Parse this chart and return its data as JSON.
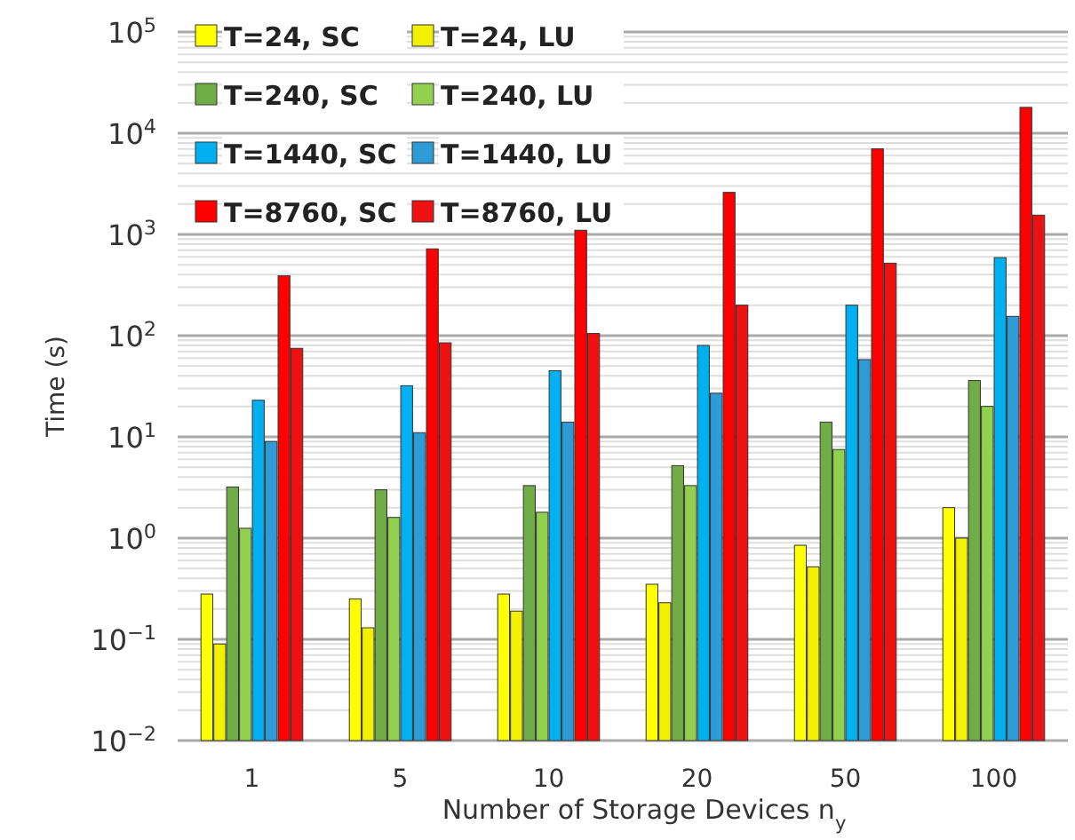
{
  "chart_data": {
    "type": "bar",
    "xlabel": "Number of Storage Devices n$_{y}$",
    "ylabel": "Time (s)",
    "categories": [
      "1",
      "5",
      "10",
      "20",
      "50",
      "100"
    ],
    "series": [
      {
        "name": "T=24, SC",
        "color": "#ffff00",
        "values": [
          0.28,
          0.25,
          0.28,
          0.35,
          0.85,
          2.0
        ]
      },
      {
        "name": "T=24, LU",
        "color": "#f2f200",
        "values": [
          0.09,
          0.13,
          0.19,
          0.23,
          0.52,
          1.0
        ]
      },
      {
        "name": "T=240, SC",
        "color": "#70ad47",
        "values": [
          3.2,
          3.0,
          3.3,
          5.2,
          14,
          36
        ]
      },
      {
        "name": "T=240, LU",
        "color": "#92d050",
        "values": [
          1.25,
          1.6,
          1.8,
          3.3,
          7.5,
          20
        ]
      },
      {
        "name": "T=1440, SC",
        "color": "#00b0f0",
        "values": [
          23,
          32,
          45,
          80,
          200,
          590
        ]
      },
      {
        "name": "T=1440, LU",
        "color": "#2e9bd6",
        "values": [
          9,
          11,
          14,
          27,
          58,
          155
        ]
      },
      {
        "name": "T=8760, SC",
        "color": "#ff0000",
        "values": [
          390,
          720,
          1100,
          2600,
          7000,
          18000
        ]
      },
      {
        "name": "T=8760, LU",
        "color": "#ee1111",
        "values": [
          75,
          85,
          105,
          200,
          520,
          1550
        ]
      }
    ],
    "log": true,
    "ylim": [
      0.01,
      100000
    ],
    "yticks": [
      {
        "value": 0.01,
        "label": "10$^{−2}$"
      },
      {
        "value": 0.1,
        "label": "10$^{−1}$"
      },
      {
        "value": 1,
        "label": "10$^{0}$"
      },
      {
        "value": 10,
        "label": "10$^{1}$"
      },
      {
        "value": 100,
        "label": "10$^{2}$"
      },
      {
        "value": 1000,
        "label": "10$^{3}$"
      },
      {
        "value": 10000,
        "label": "10$^{4}$"
      },
      {
        "value": 100000,
        "label": "10$^{5}$"
      }
    ],
    "grid": "y",
    "legend": "top left"
  }
}
